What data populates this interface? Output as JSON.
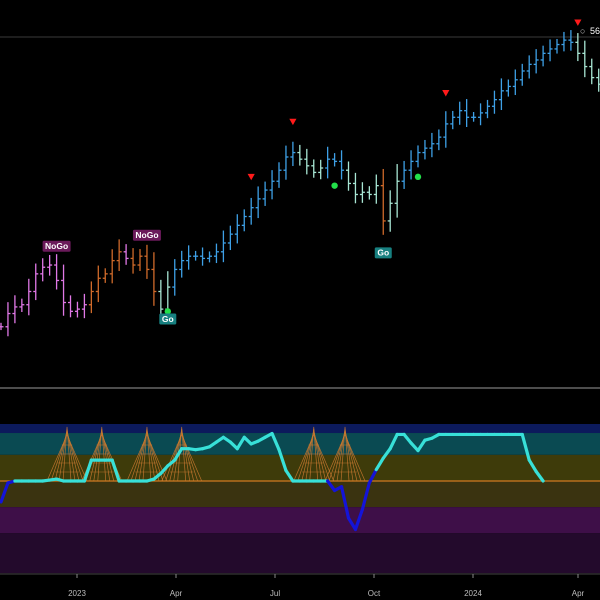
{
  "header": {
    "readout_glyph": "○",
    "readout_value": "56"
  },
  "colors": {
    "background": "#000000",
    "go_strong": "#3ea0e6",
    "go_weak": "#a8e6d4",
    "nogo_weak": "#d06a2a",
    "nogo_strong": "#e078e6",
    "marker_down": "#ff1a1a",
    "marker_dot": "#22e04a",
    "label_go_bg": "#178080",
    "label_nogo_bg": "#6a1a5a",
    "osc_line": "#38e0d8",
    "osc_line_neg": "#1414d8",
    "zero_line": "#d07a20",
    "cone": "#c87830"
  },
  "chart_data": [
    {
      "type": "line",
      "title": "",
      "xlabel": "",
      "ylabel": "",
      "x_ticks": [
        "2023",
        "Apr",
        "Jul",
        "Oct",
        "2024",
        "Apr"
      ],
      "grid": false,
      "series": [
        {
          "values": [
            [
              6,
              "NoGo-strong"
            ],
            [
              12,
              "NoGo-strong"
            ],
            [
              15,
              "NoGo-strong"
            ],
            [
              16,
              "NoGo-strong"
            ],
            [
              22,
              "NoGo-strong"
            ],
            [
              30,
              "NoGo-strong"
            ],
            [
              33,
              "NoGo-strong"
            ],
            [
              34,
              "NoGo-strong"
            ],
            [
              27,
              "NoGo-strong"
            ],
            [
              17,
              "NoGo-strong"
            ],
            [
              13,
              "NoGo-strong"
            ],
            [
              14,
              "NoGo-strong"
            ],
            [
              16,
              "NoGo-strong"
            ],
            [
              22,
              "NoGo-weak"
            ],
            [
              28,
              "NoGo-weak"
            ],
            [
              30,
              "NoGo-weak"
            ],
            [
              36,
              "NoGo-weak"
            ],
            [
              40,
              "NoGo-weak"
            ],
            [
              37,
              "NoGo-strong"
            ],
            [
              34,
              "NoGo-weak"
            ],
            [
              38,
              "NoGo-weak"
            ],
            [
              32,
              "NoGo-weak"
            ],
            [
              22,
              "NoGo-weak"
            ],
            [
              14,
              "Go-weak"
            ],
            [
              24,
              "Go-weak"
            ],
            [
              32,
              "Go-strong"
            ],
            [
              36,
              "Go-strong"
            ],
            [
              38,
              "Go-strong"
            ],
            [
              38,
              "Go-strong"
            ],
            [
              37,
              "Go-strong"
            ],
            [
              38,
              "Go-strong"
            ],
            [
              40,
              "Go-strong"
            ],
            [
              44,
              "Go-strong"
            ],
            [
              48,
              "Go-strong"
            ],
            [
              52,
              "Go-strong"
            ],
            [
              56,
              "Go-strong"
            ],
            [
              60,
              "Go-strong"
            ],
            [
              64,
              "Go-strong"
            ],
            [
              68,
              "Go-strong"
            ],
            [
              72,
              "Go-strong"
            ],
            [
              77,
              "Go-strong"
            ],
            [
              83,
              "Go-strong"
            ],
            [
              85,
              "Go-strong"
            ],
            [
              82,
              "Go-weak"
            ],
            [
              79,
              "Go-weak"
            ],
            [
              76,
              "Go-weak"
            ],
            [
              78,
              "Go-weak"
            ],
            [
              82,
              "Go-strong"
            ],
            [
              81,
              "Go-strong"
            ],
            [
              77,
              "Go-strong"
            ],
            [
              71,
              "Go-weak"
            ],
            [
              66,
              "Go-weak"
            ],
            [
              67,
              "Go-weak"
            ],
            [
              66,
              "Go-weak"
            ],
            [
              70,
              "Go-weak"
            ],
            [
              54,
              "NoGo-weak"
            ],
            [
              62,
              "Go-weak"
            ],
            [
              72,
              "Go-weak"
            ],
            [
              77,
              "Go-strong"
            ],
            [
              81,
              "Go-strong"
            ],
            [
              85,
              "Go-strong"
            ],
            [
              87,
              "Go-strong"
            ],
            [
              89,
              "Go-strong"
            ],
            [
              92,
              "Go-strong"
            ],
            [
              98,
              "Go-strong"
            ],
            [
              101,
              "Go-strong"
            ],
            [
              104,
              "Go-strong"
            ],
            [
              101,
              "Go-strong"
            ],
            [
              101,
              "Go-strong"
            ],
            [
              103,
              "Go-strong"
            ],
            [
              106,
              "Go-strong"
            ],
            [
              109,
              "Go-strong"
            ],
            [
              113,
              "Go-strong"
            ],
            [
              115,
              "Go-strong"
            ],
            [
              118,
              "Go-strong"
            ],
            [
              122,
              "Go-strong"
            ],
            [
              125,
              "Go-strong"
            ],
            [
              127,
              "Go-strong"
            ],
            [
              130,
              "Go-strong"
            ],
            [
              132,
              "Go-strong"
            ],
            [
              134,
              "Go-strong"
            ],
            [
              136,
              "Go-strong"
            ],
            [
              135,
              "Go-strong"
            ],
            [
              130,
              "Go-weak"
            ],
            [
              124,
              "Go-weak"
            ],
            [
              119,
              "Go-weak"
            ],
            [
              116,
              "Go-weak"
            ]
          ]
        }
      ],
      "annotations": [
        {
          "text": "NoGo",
          "at_bar": 8,
          "kind": "nogo"
        },
        {
          "text": "NoGo",
          "at_bar": 21,
          "kind": "nogo"
        },
        {
          "text": "Go",
          "at_bar": 24,
          "kind": "go"
        },
        {
          "text": "Go",
          "at_bar": 55,
          "kind": "go"
        }
      ],
      "markers": [
        {
          "kind": "down-triangle",
          "at_bar": 36
        },
        {
          "kind": "down-triangle",
          "at_bar": 42
        },
        {
          "kind": "down-triangle",
          "at_bar": 64
        },
        {
          "kind": "down-triangle",
          "at_bar": 83
        },
        {
          "kind": "dot",
          "at_bar": 24
        },
        {
          "kind": "dot",
          "at_bar": 48
        },
        {
          "kind": "dot",
          "at_bar": 60
        }
      ]
    },
    {
      "type": "line",
      "title": "",
      "xlabel": "",
      "ylabel": "",
      "ylim": [
        -6,
        6
      ],
      "grid": false,
      "series": [
        {
          "values": [
            -2.2,
            -0.2,
            0,
            0,
            0,
            0,
            0,
            0.1,
            0.2,
            0,
            0,
            0,
            0,
            2.2,
            2.2,
            2.2,
            2.2,
            0,
            0,
            0,
            0,
            0,
            0.2,
            0.8,
            1.6,
            2.2,
            3.4,
            3.4,
            3.3,
            3.4,
            3.6,
            4.1,
            4.6,
            4.1,
            3.4,
            4.6,
            3.9,
            4.2,
            4.6,
            5.0,
            3.3,
            1.1,
            0,
            0,
            0,
            0,
            0,
            0,
            -1.0,
            -0.6,
            -3.9,
            -5.1,
            -3.0,
            -0.2,
            1.2,
            2.4,
            3.4,
            4.9,
            4.9,
            4.0,
            3.2,
            4.3,
            4.5,
            4.9,
            4.9,
            4.9,
            4.9,
            4.9,
            4.9,
            4.9,
            4.9,
            4.9,
            4.9,
            4.9,
            4.9,
            4.9,
            2.2,
            1.0,
            0
          ]
        }
      ],
      "cones": [
        9.5,
        14.5,
        21.0,
        26.0,
        45.0,
        49.5
      ]
    }
  ]
}
